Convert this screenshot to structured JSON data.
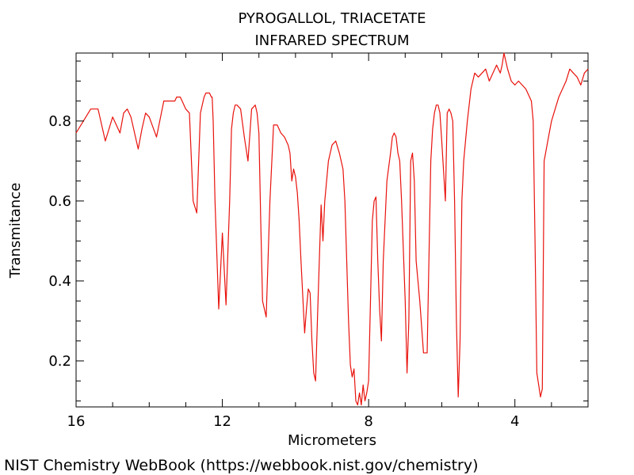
{
  "chart_data": {
    "type": "line",
    "title": "PYROGALLOL, TRIACETATE",
    "subtitle": "INFRARED SPECTRUM",
    "xlabel": "Micrometers",
    "ylabel": "Transmitance",
    "xlim": [
      16,
      2.0
    ],
    "ylim": [
      0.085,
      0.97
    ],
    "x_major_ticks": [
      16,
      12,
      8,
      4
    ],
    "y_major_ticks": [
      0.2,
      0.4,
      0.6,
      0.8
    ],
    "x_tick_labels": [
      "16",
      "12",
      "8",
      "4"
    ],
    "y_tick_labels": [
      "0.2",
      "0.4",
      "0.6",
      "0.8"
    ],
    "grid": false,
    "line_color": "#e8120c",
    "series": [
      {
        "x": [
          16.0,
          15.8,
          15.6,
          15.4,
          15.3,
          15.2,
          15.1,
          15.0,
          14.9,
          14.8,
          14.7,
          14.6,
          14.5,
          14.4,
          14.3,
          14.2,
          14.1,
          14.0,
          13.8,
          13.6,
          13.4,
          13.3,
          13.25,
          13.2,
          13.15,
          13.1,
          13.0,
          12.9,
          12.8,
          12.7,
          12.6,
          12.5,
          12.45,
          12.4,
          12.38,
          12.35,
          12.3,
          12.28,
          12.25,
          12.2,
          12.1,
          12.0,
          11.9,
          11.8,
          11.75,
          11.7,
          11.65,
          11.6,
          11.5,
          11.4,
          11.3,
          11.2,
          11.1,
          11.05,
          11.0,
          10.95,
          10.9,
          10.8,
          10.7,
          10.6,
          10.5,
          10.4,
          10.3,
          10.2,
          10.15,
          10.1,
          10.05,
          10.0,
          9.95,
          9.9,
          9.85,
          9.8,
          9.75,
          9.7,
          9.65,
          9.6,
          9.55,
          9.5,
          9.45,
          9.4,
          9.35,
          9.3,
          9.25,
          9.2,
          9.1,
          9.0,
          8.9,
          8.8,
          8.7,
          8.65,
          8.6,
          8.55,
          8.5,
          8.45,
          8.4,
          8.35,
          8.3,
          8.25,
          8.2,
          8.15,
          8.1,
          8.05,
          8.0,
          7.95,
          7.9,
          7.85,
          7.8,
          7.75,
          7.7,
          7.65,
          7.6,
          7.5,
          7.4,
          7.35,
          7.3,
          7.25,
          7.2,
          7.15,
          7.1,
          7.0,
          6.95,
          6.9,
          6.85,
          6.8,
          6.75,
          6.7,
          6.65,
          6.6,
          6.5,
          6.4,
          6.3,
          6.25,
          6.2,
          6.15,
          6.1,
          6.05,
          6.0,
          5.9,
          5.85,
          5.8,
          5.75,
          5.7,
          5.65,
          5.6,
          5.55,
          5.5,
          5.45,
          5.4,
          5.3,
          5.2,
          5.1,
          5.0,
          4.9,
          4.8,
          4.7,
          4.6,
          4.5,
          4.4,
          4.35,
          4.3,
          4.2,
          4.1,
          4.0,
          3.9,
          3.8,
          3.7,
          3.6,
          3.55,
          3.5,
          3.45,
          3.4,
          3.35,
          3.3,
          3.25,
          3.2,
          3.1,
          3.0,
          2.9,
          2.8,
          2.7,
          2.6,
          2.5,
          2.4,
          2.3,
          2.2,
          2.1,
          2.0
        ],
        "y": [
          0.77,
          0.8,
          0.83,
          0.83,
          0.79,
          0.75,
          0.78,
          0.81,
          0.79,
          0.77,
          0.82,
          0.83,
          0.81,
          0.77,
          0.73,
          0.78,
          0.82,
          0.81,
          0.76,
          0.85,
          0.85,
          0.85,
          0.86,
          0.86,
          0.86,
          0.85,
          0.83,
          0.82,
          0.6,
          0.57,
          0.82,
          0.86,
          0.87,
          0.87,
          0.87,
          0.87,
          0.86,
          0.86,
          0.8,
          0.6,
          0.33,
          0.52,
          0.34,
          0.6,
          0.78,
          0.82,
          0.84,
          0.84,
          0.83,
          0.76,
          0.7,
          0.83,
          0.84,
          0.82,
          0.77,
          0.55,
          0.35,
          0.31,
          0.6,
          0.79,
          0.79,
          0.77,
          0.76,
          0.74,
          0.72,
          0.65,
          0.68,
          0.66,
          0.62,
          0.55,
          0.45,
          0.36,
          0.27,
          0.33,
          0.38,
          0.37,
          0.25,
          0.17,
          0.15,
          0.3,
          0.45,
          0.59,
          0.5,
          0.6,
          0.7,
          0.74,
          0.75,
          0.72,
          0.68,
          0.6,
          0.45,
          0.3,
          0.19,
          0.16,
          0.18,
          0.1,
          0.09,
          0.12,
          0.09,
          0.14,
          0.1,
          0.12,
          0.15,
          0.35,
          0.55,
          0.6,
          0.61,
          0.45,
          0.33,
          0.25,
          0.45,
          0.65,
          0.72,
          0.76,
          0.77,
          0.76,
          0.72,
          0.7,
          0.6,
          0.35,
          0.17,
          0.3,
          0.7,
          0.72,
          0.65,
          0.45,
          0.4,
          0.35,
          0.22,
          0.22,
          0.7,
          0.78,
          0.82,
          0.84,
          0.84,
          0.82,
          0.75,
          0.6,
          0.82,
          0.83,
          0.82,
          0.8,
          0.6,
          0.3,
          0.11,
          0.25,
          0.6,
          0.7,
          0.8,
          0.88,
          0.92,
          0.91,
          0.92,
          0.93,
          0.9,
          0.92,
          0.94,
          0.92,
          0.94,
          0.97,
          0.93,
          0.9,
          0.89,
          0.9,
          0.89,
          0.88,
          0.86,
          0.85,
          0.8,
          0.5,
          0.17,
          0.14,
          0.11,
          0.13,
          0.7,
          0.75,
          0.8,
          0.83,
          0.86,
          0.88,
          0.9,
          0.93,
          0.92,
          0.91,
          0.89,
          0.92,
          0.93
        ]
      }
    ]
  },
  "footer": {
    "credit": "NIST Chemistry WebBook (https://webbook.nist.gov/chemistry)"
  }
}
